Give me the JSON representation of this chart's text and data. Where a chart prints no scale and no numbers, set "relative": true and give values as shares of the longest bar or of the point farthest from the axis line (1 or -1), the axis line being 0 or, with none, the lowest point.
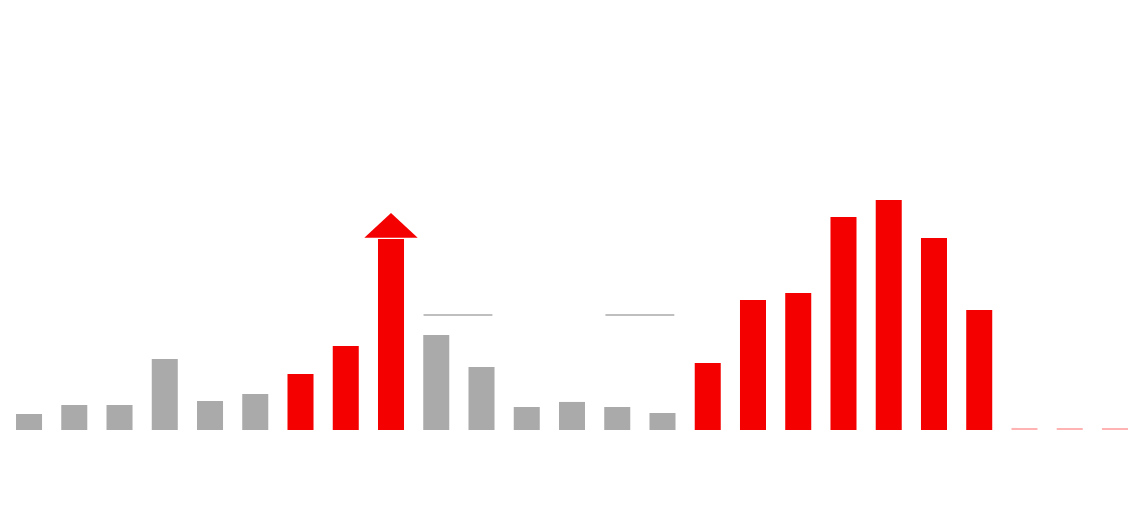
{
  "chart_data": {
    "type": "bar",
    "relative": true,
    "categories": [
      null,
      null,
      null,
      null,
      null,
      null,
      null,
      null,
      null,
      null,
      null,
      null,
      null,
      null,
      null,
      null,
      null,
      null,
      null,
      null,
      null,
      null,
      null,
      null,
      null
    ],
    "values": [
      0.07,
      0.109,
      0.109,
      0.309,
      0.126,
      0.157,
      0.243,
      0.365,
      0.83,
      0.413,
      0.274,
      0.1,
      0.122,
      0.1,
      0.074,
      0.291,
      0.565,
      0.596,
      0.926,
      1,
      0.835,
      0.522,
      0.009,
      0.009,
      0.009
    ],
    "colors": [
      "#aaaaaa",
      "#aaaaaa",
      "#aaaaaa",
      "#aaaaaa",
      "#aaaaaa",
      "#aaaaaa",
      "#f40000",
      "#f40000",
      "#f40000",
      "#aaaaaa",
      "#aaaaaa",
      "#aaaaaa",
      "#aaaaaa",
      "#aaaaaa",
      "#aaaaaa",
      "#f40000",
      "#f40000",
      "#f40000",
      "#f40000",
      "#f40000",
      "#f40000",
      "#f40000",
      "#ffb3b3",
      "#ffb3b3",
      "#ffb3b3"
    ],
    "grid": false,
    "legend": false
  }
}
